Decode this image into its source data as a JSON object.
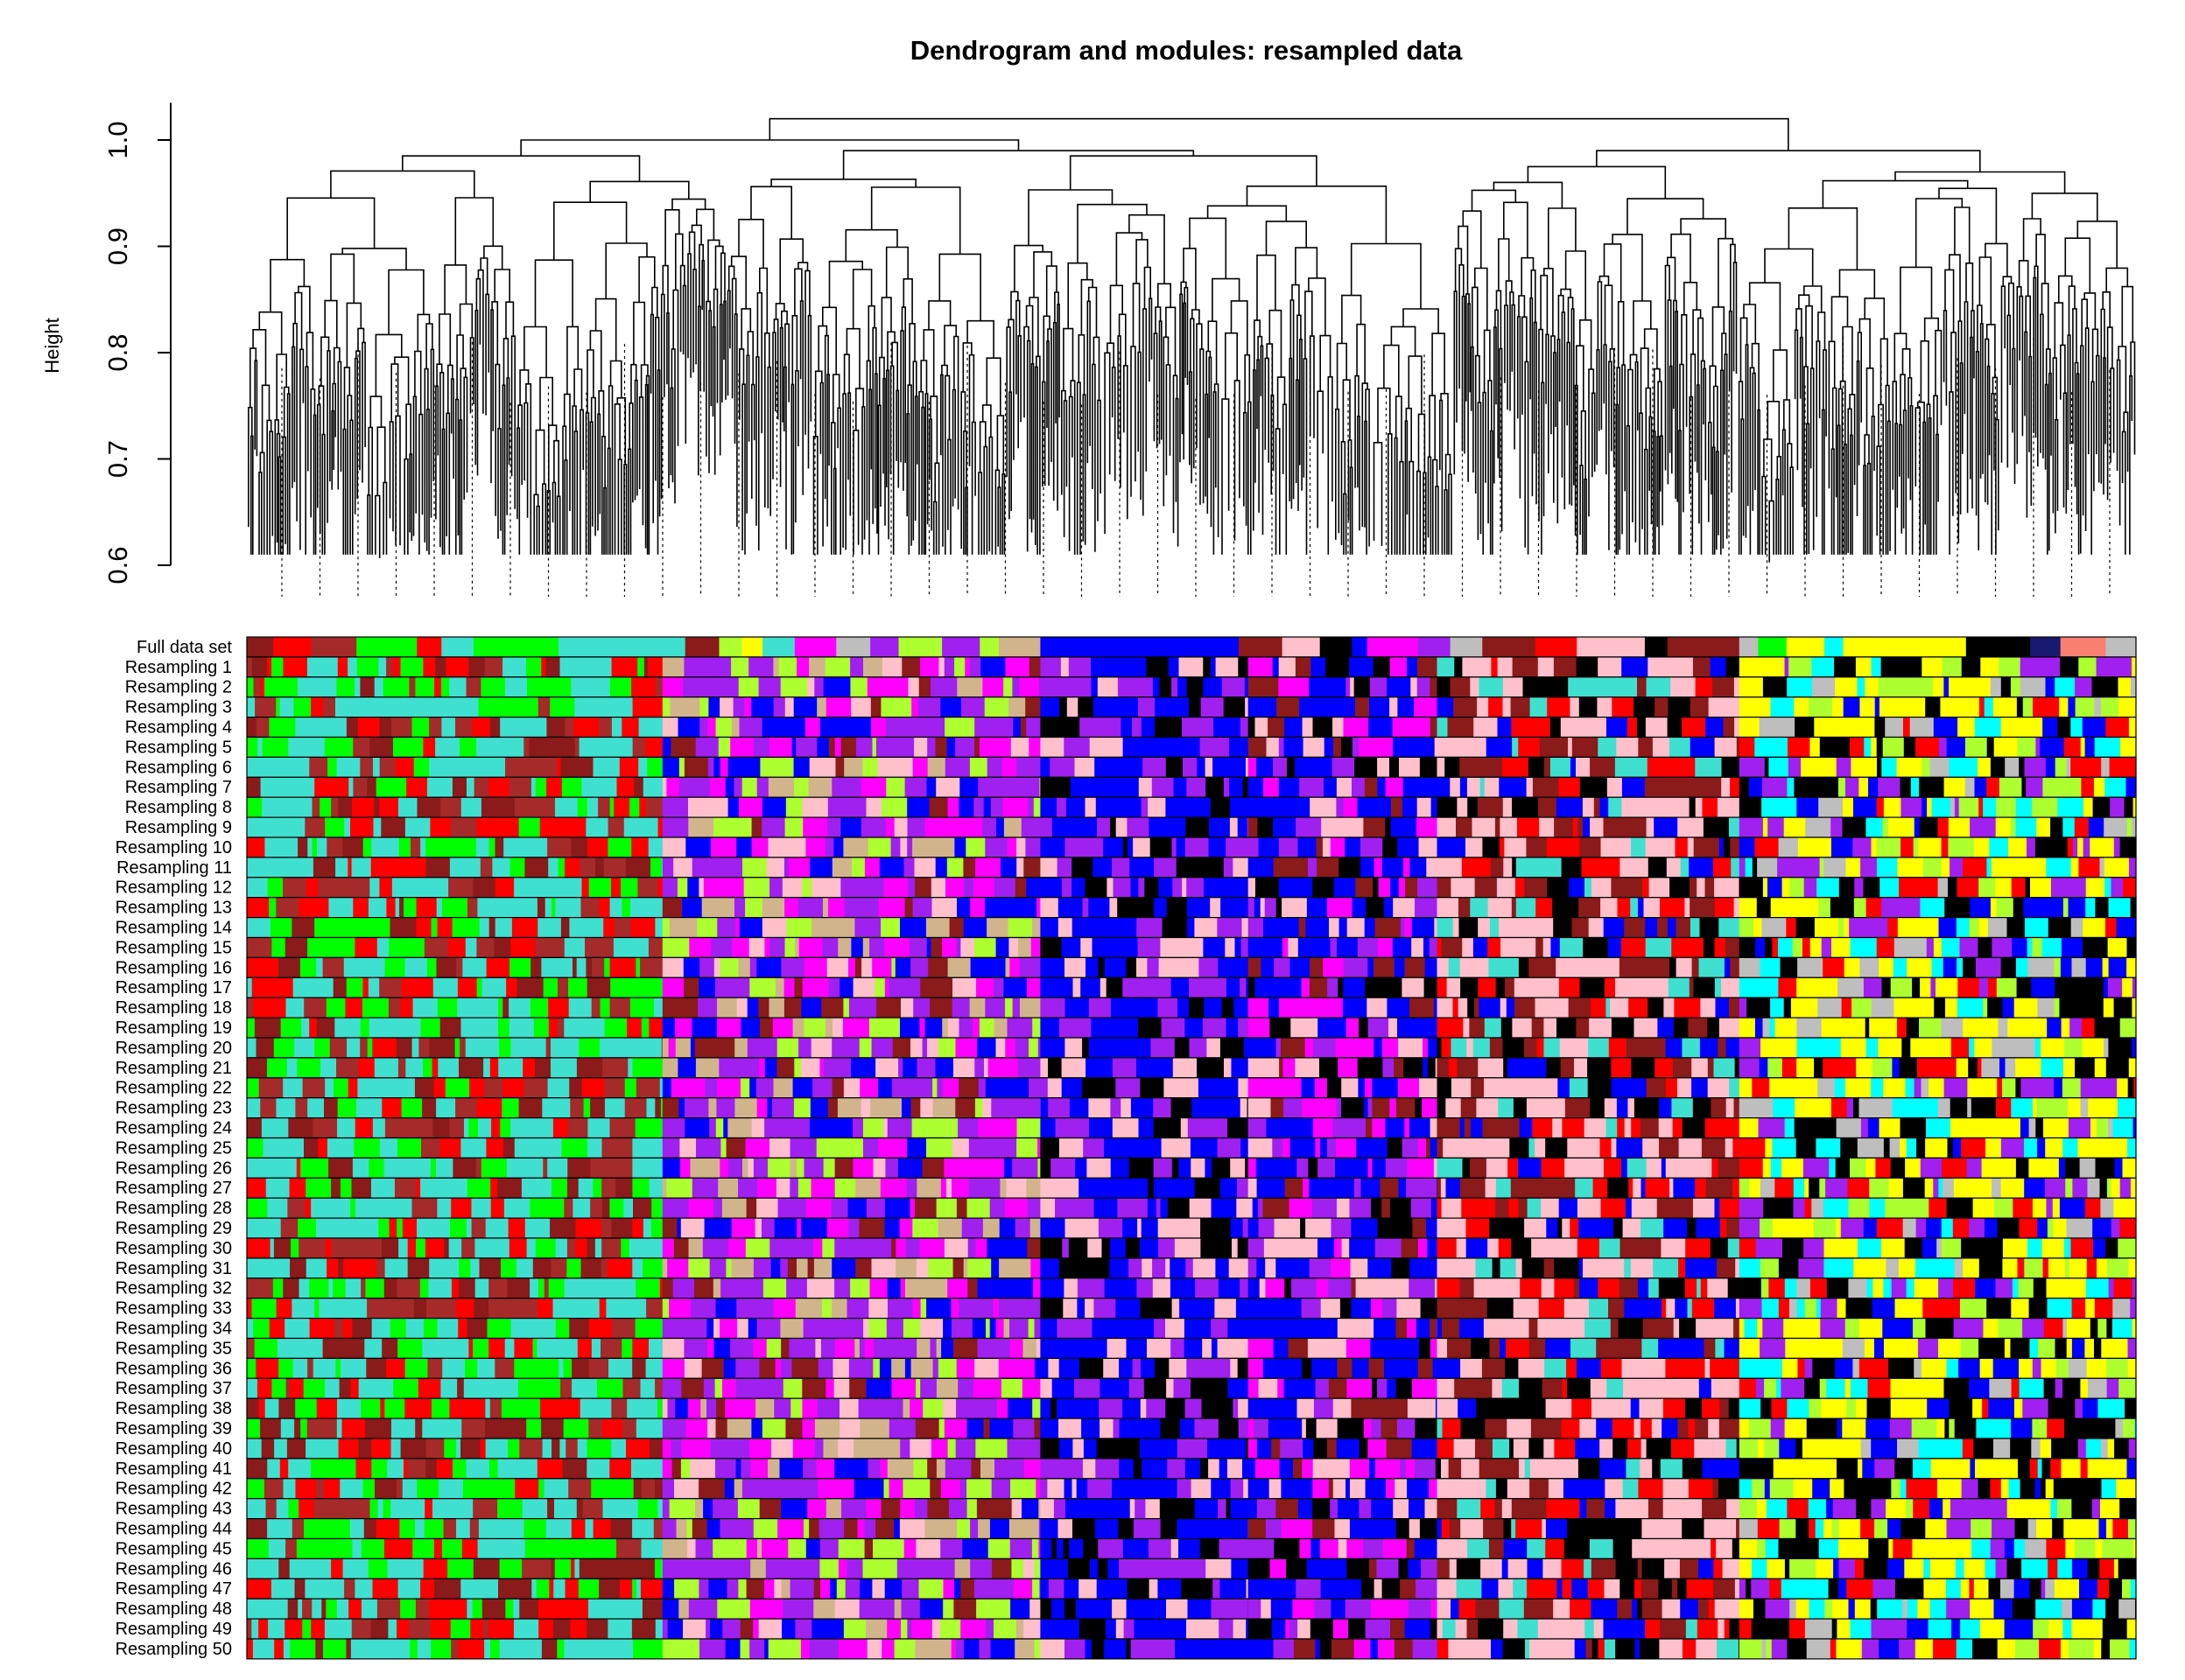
{
  "figure": {
    "title": "Dendrogram and modules: resampled data",
    "y_axis_label": "Height",
    "y_ticks": [
      "0.6",
      "0.7",
      "0.8",
      "0.9",
      "1.0"
    ]
  },
  "chart_data": {
    "type": "heatmap",
    "description_source": "dendrogram with module color bands",
    "title": "Dendrogram and modules: resampled data",
    "ylabel": "Height",
    "ylim": [
      0.6,
      1.03
    ],
    "dendrogram_heights": {
      "top_merge": 1.02,
      "major_merges": [
        0.98,
        1.0,
        0.99,
        0.98,
        0.99
      ],
      "lowest_leaf": 0.61
    },
    "rows": [
      "Full data set",
      "Resampling 1",
      "Resampling 2",
      "Resampling 3",
      "Resampling 4",
      "Resampling 5",
      "Resampling 6",
      "Resampling 7",
      "Resampling 8",
      "Resampling 9",
      "Resampling 10",
      "Resampling 11",
      "Resampling 12",
      "Resampling 13",
      "Resampling 14",
      "Resampling 15",
      "Resampling 16",
      "Resampling 17",
      "Resampling 18",
      "Resampling 19",
      "Resampling 20",
      "Resampling 21",
      "Resampling 22",
      "Resampling 23",
      "Resampling 24",
      "Resampling 25",
      "Resampling 26",
      "Resampling 27",
      "Resampling 28",
      "Resampling 29",
      "Resampling 30",
      "Resampling 31",
      "Resampling 32",
      "Resampling 33",
      "Resampling 34",
      "Resampling 35",
      "Resampling 36",
      "Resampling 37",
      "Resampling 38",
      "Resampling 39",
      "Resampling 40",
      "Resampling 41",
      "Resampling 42",
      "Resampling 43",
      "Resampling 44",
      "Resampling 45",
      "Resampling 46",
      "Resampling 47",
      "Resampling 48",
      "Resampling 49",
      "Resampling 50"
    ],
    "module_palette": {
      "turquoise": "#40E0D0",
      "blue": "#0000FF",
      "brown": "#A52A2A",
      "yellow": "#FFFF00",
      "green": "#00FF00",
      "red": "#FF0000",
      "black": "#000000",
      "pink": "#FFC0CB",
      "magenta": "#FF00FF",
      "purple": "#A020F0",
      "greenyellow": "#ADFF2F",
      "tan": "#D2B48C",
      "salmon": "#FA8072",
      "cyan": "#00FFFF",
      "midnightblue": "#191970",
      "lightcyan": "#E0FFFF",
      "grey60": "#999999",
      "lightgreen": "#90EE90",
      "lightyellow": "#FFFFE0",
      "royalblue": "#4169E1",
      "darkred": "#8B1A1A",
      "darkgreen": "#006400",
      "grey": "#BEBEBE",
      "orange": "#FFA500"
    },
    "full_data_set_modules": [
      {
        "module": "darkred",
        "span": [
          0.0,
          0.014
        ]
      },
      {
        "module": "red",
        "span": [
          0.014,
          0.034
        ]
      },
      {
        "module": "brown",
        "span": [
          0.034,
          0.058
        ]
      },
      {
        "module": "green",
        "span": [
          0.058,
          0.09
        ]
      },
      {
        "module": "red",
        "span": [
          0.09,
          0.103
        ]
      },
      {
        "module": "turquoise",
        "span": [
          0.103,
          0.12
        ]
      },
      {
        "module": "green",
        "span": [
          0.12,
          0.165
        ]
      },
      {
        "module": "turquoise",
        "span": [
          0.165,
          0.232
        ]
      },
      {
        "module": "darkred",
        "span": [
          0.232,
          0.25
        ]
      },
      {
        "module": "greenyellow",
        "span": [
          0.25,
          0.262
        ]
      },
      {
        "module": "yellow",
        "span": [
          0.262,
          0.273
        ]
      },
      {
        "module": "turquoise",
        "span": [
          0.273,
          0.29
        ]
      },
      {
        "module": "magenta",
        "span": [
          0.29,
          0.312
        ]
      },
      {
        "module": "grey",
        "span": [
          0.312,
          0.33
        ]
      },
      {
        "module": "purple",
        "span": [
          0.33,
          0.345
        ]
      },
      {
        "module": "greenyellow",
        "span": [
          0.345,
          0.368
        ]
      },
      {
        "module": "purple",
        "span": [
          0.368,
          0.388
        ]
      },
      {
        "module": "greenyellow",
        "span": [
          0.388,
          0.398
        ]
      },
      {
        "module": "tan",
        "span": [
          0.398,
          0.42
        ]
      },
      {
        "module": "blue",
        "span": [
          0.42,
          0.525
        ]
      },
      {
        "module": "darkred",
        "span": [
          0.525,
          0.548
        ]
      },
      {
        "module": "pink",
        "span": [
          0.548,
          0.568
        ]
      },
      {
        "module": "black",
        "span": [
          0.568,
          0.585
        ]
      },
      {
        "module": "blue",
        "span": [
          0.585,
          0.593
        ]
      },
      {
        "module": "magenta",
        "span": [
          0.593,
          0.62
        ]
      },
      {
        "module": "purple",
        "span": [
          0.62,
          0.637
        ]
      },
      {
        "module": "grey",
        "span": [
          0.637,
          0.654
        ]
      },
      {
        "module": "darkred",
        "span": [
          0.654,
          0.682
        ]
      },
      {
        "module": "red",
        "span": [
          0.682,
          0.704
        ]
      },
      {
        "module": "pink",
        "span": [
          0.704,
          0.74
        ]
      },
      {
        "module": "black",
        "span": [
          0.74,
          0.752
        ]
      },
      {
        "module": "darkred",
        "span": [
          0.752,
          0.79
        ]
      },
      {
        "module": "grey",
        "span": [
          0.79,
          0.8
        ]
      },
      {
        "module": "green",
        "span": [
          0.8,
          0.815
        ]
      },
      {
        "module": "yellow",
        "span": [
          0.815,
          0.835
        ]
      },
      {
        "module": "cyan",
        "span": [
          0.835,
          0.845
        ]
      },
      {
        "module": "yellow",
        "span": [
          0.845,
          0.91
        ]
      },
      {
        "module": "black",
        "span": [
          0.91,
          0.924
        ]
      },
      {
        "module": "black",
        "span": [
          0.924,
          0.944
        ]
      },
      {
        "module": "midnightblue",
        "span": [
          0.944,
          0.96
        ]
      },
      {
        "module": "salmon",
        "span": [
          0.96,
          0.984
        ]
      },
      {
        "module": "grey",
        "span": [
          0.984,
          1.0
        ]
      }
    ],
    "resampling_module_profile": [
      {
        "span": [
          0.0,
          0.22
        ],
        "modules": [
          "turquoise",
          "green",
          "red",
          "darkred",
          "brown"
        ]
      },
      {
        "span": [
          0.22,
          0.42
        ],
        "modules": [
          "purple",
          "magenta",
          "greenyellow",
          "blue",
          "pink",
          "tan",
          "darkred"
        ]
      },
      {
        "span": [
          0.42,
          0.53
        ],
        "modules": [
          "blue",
          "purple",
          "black",
          "pink"
        ]
      },
      {
        "span": [
          0.53,
          0.63
        ],
        "modules": [
          "blue",
          "magenta",
          "purple",
          "pink",
          "black",
          "darkred"
        ]
      },
      {
        "span": [
          0.63,
          0.79
        ],
        "modules": [
          "pink",
          "darkred",
          "red",
          "black",
          "blue",
          "turquoise"
        ]
      },
      {
        "span": [
          0.79,
          1.0
        ],
        "modules": [
          "yellow",
          "black",
          "cyan",
          "purple",
          "greenyellow",
          "red",
          "blue",
          "grey"
        ]
      }
    ]
  }
}
